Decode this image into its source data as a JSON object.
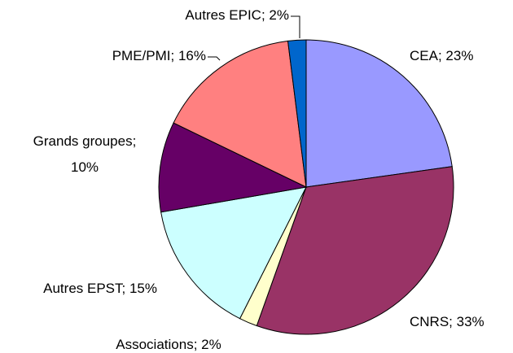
{
  "chart_data": {
    "type": "pie",
    "categories": [
      "CEA",
      "CNRS",
      "Associations",
      "Autres EPST",
      "Grands groupes",
      "PME/PMI",
      "Autres EPIC"
    ],
    "values": [
      23,
      33,
      2,
      15,
      10,
      16,
      2
    ],
    "value_labels": [
      "23%",
      "33%",
      "2%",
      "15%",
      "10%",
      "16%",
      "2%"
    ],
    "label_separator": "; ",
    "colors": [
      "#9999ff",
      "#993366",
      "#ffffcc",
      "#ccffff",
      "#660066",
      "#ff8080",
      "#0066cc"
    ]
  }
}
